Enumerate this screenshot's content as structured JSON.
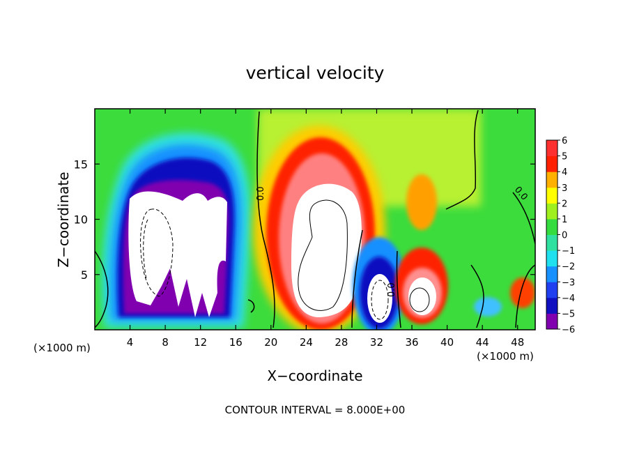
{
  "chart_data": {
    "type": "heatmap",
    "title": "vertical velocity",
    "xlabel": "X−coordinate",
    "ylabel": "Z−coordinate",
    "x_unit_left": "(×1000 m)",
    "x_unit_right": "(×1000 m)",
    "footer": "CONTOUR INTERVAL = 8.000E+00",
    "xlim": [
      0,
      50
    ],
    "ylim": [
      0,
      20
    ],
    "x_ticks": [
      4,
      8,
      12,
      16,
      20,
      24,
      28,
      32,
      36,
      40,
      44,
      48
    ],
    "y_ticks": [
      5,
      10,
      15
    ],
    "zero_contour_label": "0.0",
    "colorbar": {
      "min": -6,
      "max": 6,
      "labels": [
        "6",
        "5",
        "4",
        "3",
        "2",
        "1",
        "0",
        "−1",
        "−2",
        "−3",
        "−4",
        "−5",
        "−6"
      ],
      "stops": [
        {
          "v": -6,
          "color": "#8000b0"
        },
        {
          "v": -5,
          "color": "#1010c0"
        },
        {
          "v": -4,
          "color": "#2040f0"
        },
        {
          "v": -3,
          "color": "#1890ff"
        },
        {
          "v": -2,
          "color": "#20e0f0"
        },
        {
          "v": -1,
          "color": "#30e0a0"
        },
        {
          "v": 0,
          "color": "#34dc40"
        },
        {
          "v": 1,
          "color": "#a0f020"
        },
        {
          "v": 2,
          "color": "#ffff00"
        },
        {
          "v": 3,
          "color": "#ffb000"
        },
        {
          "v": 4,
          "color": "#ff2000"
        },
        {
          "v": 5,
          "color": "#ff3030"
        },
        {
          "v": 6,
          "color": "#ff9090"
        }
      ]
    },
    "features": [
      {
        "name": "downdraft-region",
        "x": 9,
        "z": 8,
        "w_min": -8
      },
      {
        "name": "main-updraft",
        "x": 26,
        "z": 8,
        "w_max": 16
      },
      {
        "name": "minor-downdraft",
        "x": 32.5,
        "z": 2.8,
        "w_min": -8
      },
      {
        "name": "minor-updraft",
        "x": 37.5,
        "z": 2.8,
        "w_max": 8
      }
    ]
  }
}
